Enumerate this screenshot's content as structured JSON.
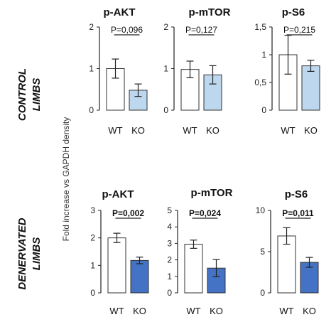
{
  "figure": {
    "shared_ylabel": "Fold increase vs GAPDH density",
    "row_labels": [
      [
        "CONTROL",
        "LIMBS"
      ],
      [
        "DENERVATED",
        "LIMBS"
      ]
    ]
  },
  "chart_data": [
    {
      "type": "bar",
      "title": "p-AKT",
      "row": "control",
      "categories": [
        "WT",
        "KO"
      ],
      "values": [
        1.0,
        0.48
      ],
      "errors": [
        0.23,
        0.15
      ],
      "colors": [
        "#ffffff",
        "#bdd7ee"
      ],
      "ylim": [
        0,
        2
      ],
      "yticks": [
        "0",
        "1",
        "2"
      ],
      "pvalue": "P=0,096",
      "pvalue_bold": false
    },
    {
      "type": "bar",
      "title": "p-mTOR",
      "row": "control",
      "categories": [
        "WT",
        "KO"
      ],
      "values": [
        0.98,
        0.85
      ],
      "errors": [
        0.2,
        0.22
      ],
      "colors": [
        "#ffffff",
        "#bdd7ee"
      ],
      "ylim": [
        0,
        2
      ],
      "yticks": [
        "0",
        "1",
        "2"
      ],
      "pvalue": "P=0,127",
      "pvalue_bold": false
    },
    {
      "type": "bar",
      "title": "p-S6",
      "row": "control",
      "categories": [
        "WT",
        "KO"
      ],
      "values": [
        1.0,
        0.8
      ],
      "errors": [
        0.35,
        0.1
      ],
      "colors": [
        "#ffffff",
        "#bdd7ee"
      ],
      "ylim": [
        0,
        1.5
      ],
      "yticks": [
        "0",
        "0,5",
        "1",
        "1,5"
      ],
      "pvalue": "P=0,215",
      "pvalue_bold": false
    },
    {
      "type": "bar",
      "title": "p-AKT",
      "row": "denervated",
      "categories": [
        "WT",
        "KO"
      ],
      "values": [
        2.0,
        1.18
      ],
      "errors": [
        0.17,
        0.12
      ],
      "colors": [
        "#ffffff",
        "#4472c4"
      ],
      "ylim": [
        0,
        3
      ],
      "yticks": [
        "0",
        "1",
        "2",
        "3"
      ],
      "pvalue": "P=0,002",
      "pvalue_bold": true
    },
    {
      "type": "bar",
      "title": "p-mTOR",
      "row": "denervated",
      "categories": [
        "WT",
        "KO"
      ],
      "values": [
        2.95,
        1.5
      ],
      "errors": [
        0.25,
        0.52
      ],
      "colors": [
        "#ffffff",
        "#4472c4"
      ],
      "ylim": [
        0,
        5
      ],
      "yticks": [
        "0",
        "1",
        "2",
        "3",
        "4",
        "5"
      ],
      "pvalue": "P=0,024",
      "pvalue_bold": true
    },
    {
      "type": "bar",
      "title": "p-S6",
      "row": "denervated",
      "categories": [
        "WT",
        "KO"
      ],
      "values": [
        6.9,
        3.7
      ],
      "errors": [
        1.0,
        0.6
      ],
      "colors": [
        "#ffffff",
        "#4472c4"
      ],
      "ylim": [
        0,
        10
      ],
      "yticks": [
        "0",
        "5",
        "10"
      ],
      "pvalue": "P=0,011",
      "pvalue_bold": true
    }
  ]
}
